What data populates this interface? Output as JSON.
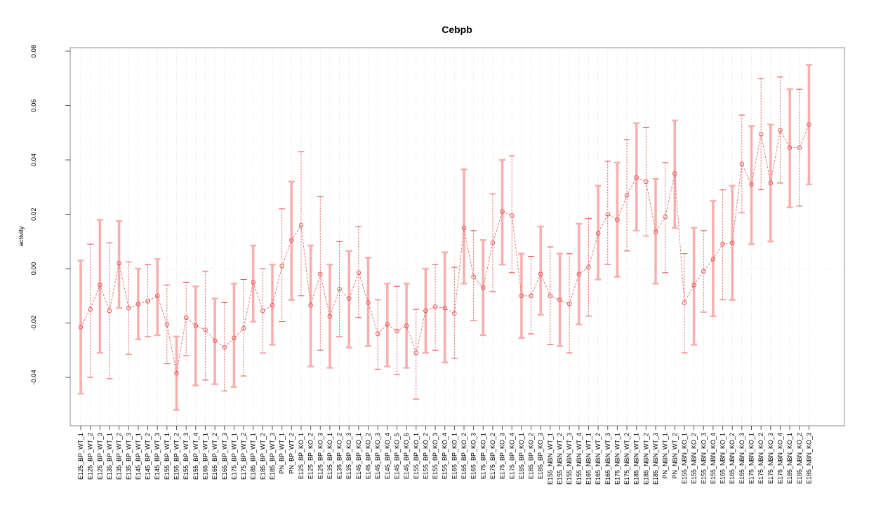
{
  "chart_data": {
    "type": "scatter",
    "title": "Cebpb",
    "xlabel": "",
    "ylabel": "activity",
    "ylim": [
      -0.058,
      0.0815
    ],
    "yticks": [
      0.08,
      0.06,
      0.04,
      0.02,
      0.0,
      -0.02,
      -0.04
    ],
    "ytick_labels": [
      "0.08",
      "0.06",
      "0.04",
      "0.02",
      "0.00",
      "-0.02",
      "-0.04"
    ],
    "grid": "vertical dotted gridline at every category; horizontal dotted gridline at y=0",
    "legend": null,
    "line_style": "dashed",
    "marker": "open-circle",
    "colors": {
      "point": "#e85555",
      "line": "#ef6666",
      "error_bar_thin": "#e85555",
      "error_bar_thick": "#f7aeae",
      "gridline": "#dedede",
      "frame": "#888888",
      "tick_text": "#000000"
    },
    "categories": [
      "E125_BP_WT_1",
      "E125_BP_WT_2",
      "E125_BP_WT_3",
      "E135_BP_WT_1",
      "E135_BP_WT_2",
      "E135_BP_WT_3",
      "E145_BP_WT_1",
      "E145_BP_WT_2",
      "E145_BP_WT_3",
      "E155_BP_WT_1",
      "E155_BP_WT_2",
      "E155_BP_WT_3",
      "E155_BP_WT_4",
      "E165_BP_WT_1",
      "E165_BP_WT_2",
      "E165_BP_WT_3",
      "E175_BP_WT_1",
      "E175_BP_WT_2",
      "E185_BP_WT_1",
      "E185_BP_WT_2",
      "E185_BP_WT_3",
      "PN_BP_WT_1",
      "PN_BP_WT_2",
      "E125_BP_KO_1",
      "E125_BP_KO_2",
      "E125_BP_KO_3",
      "E135_BP_KO_1",
      "E135_BP_KO_2",
      "E135_BP_KO_3",
      "E145_BP_KO_1",
      "E145_BP_KO_2",
      "E145_BP_KO_3",
      "E145_BP_KO_4",
      "E145_BP_KO_5",
      "E145_BP_KO_6",
      "E155_BP_KO_1",
      "E155_BP_KO_2",
      "E155_BP_KO_3",
      "E155_BP_KO_4",
      "E165_BP_KO_1",
      "E165_BP_KO_2",
      "E165_BP_KO_3",
      "E175_BP_KO_1",
      "E175_BP_KO_2",
      "E175_BP_KO_3",
      "E175_BP_KO_4",
      "E185_BP_KO_1",
      "E185_BP_KO_2",
      "E185_BP_KO_3",
      "E155_NBN_WT_1",
      "E155_NBN_WT_2",
      "E155_NBN_WT_3",
      "E155_NBN_WT_4",
      "E165_NBN_WT_1",
      "E165_NBN_WT_2",
      "E165_NBN_WT_3",
      "E175_NBN_WT_1",
      "E175_NBN_WT_2",
      "E185_NBN_WT_1",
      "E185_NBN_WT_2",
      "E185_NBN_WT_3",
      "PN_NBN_WT_1",
      "PN_NBN_WT_2",
      "E155_NBN_KO_1",
      "E155_NBN_KO_2",
      "E155_NBN_KO_3",
      "E155_NBN_KO_4",
      "E165_NBN_KO_1",
      "E165_NBN_KO_2",
      "E165_NBN_KO_3",
      "E175_NBN_KO_1",
      "E175_NBN_KO_2",
      "E175_NBN_KO_3",
      "E175_NBN_KO_4",
      "E185_NBN_KO_1",
      "E185_NBN_KO_2",
      "E185_NBN_KO_3"
    ],
    "series": [
      {
        "name": "activity",
        "values": [
          -0.0215,
          -0.015,
          -0.006,
          -0.0155,
          0.002,
          -0.0145,
          -0.013,
          -0.012,
          -0.01,
          -0.0205,
          -0.0385,
          -0.018,
          -0.021,
          -0.0225,
          -0.0265,
          -0.029,
          -0.0255,
          -0.022,
          -0.005,
          -0.0155,
          -0.0135,
          0.001,
          0.0105,
          0.016,
          -0.0135,
          -0.002,
          -0.0175,
          -0.0075,
          -0.011,
          -0.0015,
          -0.0125,
          -0.024,
          -0.0205,
          -0.023,
          -0.021,
          -0.031,
          -0.0155,
          -0.014,
          -0.0145,
          -0.0165,
          0.015,
          -0.003,
          -0.007,
          0.0095,
          0.021,
          0.0195,
          -0.01,
          -0.01,
          -0.002,
          -0.01,
          -0.0115,
          -0.013,
          -0.002,
          0.0005,
          0.013,
          0.02,
          0.018,
          0.027,
          0.0335,
          0.032,
          0.0135,
          0.019,
          0.035,
          -0.0125,
          -0.006,
          -0.001,
          0.0035,
          0.009,
          0.0095,
          0.0385,
          0.031,
          0.0495,
          0.0315,
          0.051,
          0.0445,
          0.0445,
          0.053
        ],
        "error_low": [
          -0.046,
          -0.04,
          -0.031,
          -0.0405,
          -0.0145,
          -0.0315,
          -0.026,
          -0.025,
          -0.0245,
          -0.035,
          -0.052,
          -0.032,
          -0.043,
          -0.041,
          -0.0425,
          -0.045,
          -0.0435,
          -0.0395,
          -0.0195,
          -0.031,
          -0.028,
          -0.0195,
          -0.0115,
          -0.01,
          -0.036,
          -0.03,
          -0.0365,
          -0.025,
          -0.029,
          -0.018,
          -0.0285,
          -0.037,
          -0.036,
          -0.039,
          -0.0365,
          -0.048,
          -0.031,
          -0.03,
          -0.0345,
          -0.033,
          -0.0055,
          -0.019,
          -0.0245,
          -0.0085,
          0.0015,
          -0.0015,
          -0.0255,
          -0.024,
          -0.017,
          -0.028,
          -0.0285,
          -0.031,
          -0.0205,
          -0.0175,
          -0.004,
          0.0015,
          -0.003,
          0.0065,
          0.014,
          0.012,
          -0.0055,
          -0.0015,
          0.015,
          -0.031,
          -0.028,
          -0.016,
          -0.0175,
          -0.0115,
          -0.0115,
          0.0205,
          0.009,
          0.029,
          0.01,
          0.0315,
          0.0225,
          0.023,
          0.031
        ],
        "error_high": [
          0.003,
          0.009,
          0.018,
          0.0095,
          0.0175,
          0.0025,
          0.0,
          0.0015,
          0.0035,
          -0.006,
          -0.025,
          -0.005,
          -0.0065,
          -0.001,
          -0.011,
          -0.0125,
          -0.0055,
          -0.004,
          0.0085,
          0.0,
          0.0015,
          0.022,
          0.032,
          0.043,
          0.0085,
          0.0265,
          0.0015,
          0.01,
          0.0065,
          0.0155,
          0.004,
          -0.0115,
          -0.0055,
          -0.0065,
          -0.0055,
          -0.015,
          0.0,
          0.0015,
          0.006,
          0.0005,
          0.0365,
          0.014,
          0.0105,
          0.0275,
          0.04,
          0.0415,
          0.0055,
          0.0045,
          0.0155,
          0.008,
          0.0055,
          0.0055,
          0.0165,
          0.0185,
          0.0305,
          0.0395,
          0.039,
          0.0475,
          0.0535,
          0.052,
          0.033,
          0.039,
          0.0545,
          0.0055,
          0.015,
          0.014,
          0.025,
          0.029,
          0.0305,
          0.0565,
          0.0525,
          0.07,
          0.053,
          0.0705,
          0.066,
          0.066,
          0.075
        ]
      }
    ]
  }
}
